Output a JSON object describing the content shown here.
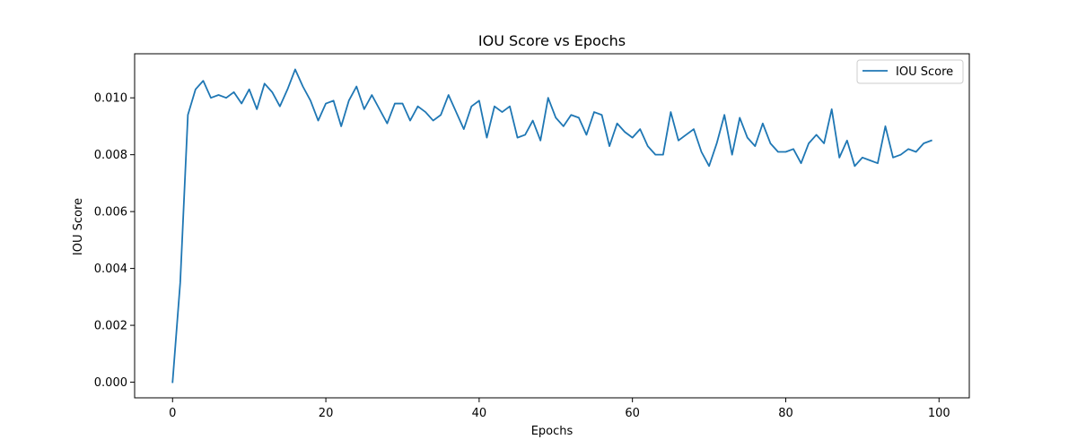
{
  "chart_data": {
    "type": "line",
    "title": "IOU Score vs Epochs",
    "xlabel": "Epochs",
    "ylabel": "IOU Score",
    "xlim": [
      -4.95,
      103.95
    ],
    "ylim": [
      -0.00055,
      0.01155
    ],
    "xticks": [
      0,
      20,
      40,
      60,
      80,
      100
    ],
    "xtick_labels": [
      "0",
      "20",
      "40",
      "60",
      "80",
      "100"
    ],
    "yticks": [
      0.0,
      0.002,
      0.004,
      0.006,
      0.008,
      0.01
    ],
    "ytick_labels": [
      "0.000",
      "0.002",
      "0.004",
      "0.006",
      "0.008",
      "0.010"
    ],
    "grid": false,
    "legend_position": "top-right",
    "series": [
      {
        "name": "IOU Score",
        "color": "#1f77b4",
        "x": [
          0,
          1,
          2,
          3,
          4,
          5,
          6,
          7,
          8,
          9,
          10,
          11,
          12,
          13,
          14,
          15,
          16,
          17,
          18,
          19,
          20,
          21,
          22,
          23,
          24,
          25,
          26,
          27,
          28,
          29,
          30,
          31,
          32,
          33,
          34,
          35,
          36,
          37,
          38,
          39,
          40,
          41,
          42,
          43,
          44,
          45,
          46,
          47,
          48,
          49,
          50,
          51,
          52,
          53,
          54,
          55,
          56,
          57,
          58,
          59,
          60,
          61,
          62,
          63,
          64,
          65,
          66,
          67,
          68,
          69,
          70,
          71,
          72,
          73,
          74,
          75,
          76,
          77,
          78,
          79,
          80,
          81,
          82,
          83,
          84,
          85,
          86,
          87,
          88,
          89,
          90,
          91,
          92,
          93,
          94,
          95,
          96,
          97,
          98,
          99
        ],
        "values": [
          0.0,
          0.0035,
          0.0094,
          0.0103,
          0.0106,
          0.01,
          0.0101,
          0.01,
          0.0102,
          0.0098,
          0.0103,
          0.0096,
          0.0105,
          0.0102,
          0.0097,
          0.0103,
          0.011,
          0.0104,
          0.0099,
          0.0092,
          0.0098,
          0.0099,
          0.009,
          0.0099,
          0.0104,
          0.0096,
          0.0101,
          0.0096,
          0.0091,
          0.0098,
          0.0098,
          0.0092,
          0.0097,
          0.0095,
          0.0092,
          0.0094,
          0.0101,
          0.0095,
          0.0089,
          0.0097,
          0.0099,
          0.0086,
          0.0097,
          0.0095,
          0.0097,
          0.0086,
          0.0087,
          0.0092,
          0.0085,
          0.01,
          0.0093,
          0.009,
          0.0094,
          0.0093,
          0.0087,
          0.0095,
          0.0094,
          0.0083,
          0.0091,
          0.0088,
          0.0086,
          0.0089,
          0.0083,
          0.008,
          0.008,
          0.0095,
          0.0085,
          0.0087,
          0.0089,
          0.0081,
          0.0076,
          0.0084,
          0.0094,
          0.008,
          0.0093,
          0.0086,
          0.0083,
          0.0091,
          0.0084,
          0.0081,
          0.0081,
          0.0082,
          0.0077,
          0.0084,
          0.0087,
          0.0084,
          0.0096,
          0.0079,
          0.0085,
          0.0076,
          0.0079,
          0.0078,
          0.0077,
          0.009,
          0.0079,
          0.008,
          0.0082,
          0.0081,
          0.0084,
          0.0085
        ]
      }
    ]
  }
}
